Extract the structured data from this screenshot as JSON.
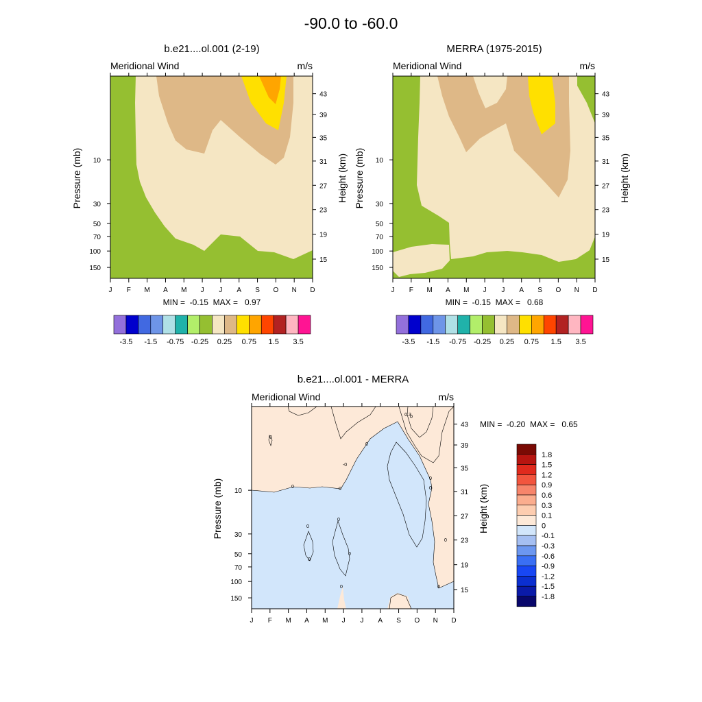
{
  "chart_data": {
    "type": "heatmap",
    "title": "-90.0 to -60.0",
    "colors": {
      "wind": [
        "#9370db",
        "#0000cd",
        "#4169e1",
        "#6e95e8",
        "#b0e0e6",
        "#20b2aa",
        "#b2ee6a",
        "#95bf31",
        "#f5e6c3",
        "#deb887",
        "#ffe000",
        "#ffa500",
        "#ff4500",
        "#b22222",
        "#ffb6c1",
        "#ff1493"
      ],
      "diff": [
        "#08076b",
        "#0a1aa8",
        "#0b2fd0",
        "#1847f4",
        "#3a6ff4",
        "#6c97f0",
        "#a5bff2",
        "#d2e6fb",
        "#fde9d8",
        "#fdcdb0",
        "#fbad8e",
        "#f7856b",
        "#f2553e",
        "#e02a1d",
        "#b71510",
        "#7a0a04"
      ],
      "contour_fill": {
        "zero_to_p1": "#fde9d8",
        "p1_to_p3": "#fdcdb0",
        "p3_to_p6": "#fbad8e",
        "m1_to_0": "#d2e6fb",
        "m3_to_m1": "#a5bff2"
      }
    },
    "panels": [
      {
        "title": "b.e21....ol.001 (2-19)",
        "left_label": "Meridional Wind",
        "right_label": "m/s",
        "xlabel_months": [
          "J",
          "F",
          "M",
          "A",
          "M",
          "J",
          "J",
          "A",
          "S",
          "O",
          "N",
          "D"
        ],
        "ylabel": "Pressure (mb)",
        "ylabel_right": "Height (km)",
        "pressure_ticks": [
          "10",
          "30",
          "50",
          "70",
          "100",
          "150"
        ],
        "height_ticks": [
          "43",
          "39",
          "35",
          "31",
          "27",
          "23",
          "19",
          "15"
        ],
        "stats": "MIN =  -0.15  MAX =   0.97",
        "min": -0.15,
        "max": 0.97,
        "colorbar_labels": [
          "-3.5",
          "-1.5",
          "-0.75",
          "-0.25",
          "0.25",
          "0.75",
          "1.5",
          "3.5"
        ]
      },
      {
        "title": "MERRA (1975-2015)",
        "left_label": "Meridional Wind",
        "right_label": "m/s",
        "xlabel_months": [
          "J",
          "F",
          "M",
          "A",
          "M",
          "J",
          "J",
          "A",
          "S",
          "O",
          "N",
          "D"
        ],
        "ylabel": "Pressure (mb)",
        "ylabel_right": "Height (km)",
        "pressure_ticks": [
          "10",
          "30",
          "50",
          "70",
          "100",
          "150"
        ],
        "height_ticks": [
          "43",
          "39",
          "35",
          "31",
          "27",
          "23",
          "19",
          "15"
        ],
        "stats": "MIN =  -0.15  MAX =   0.68",
        "min": -0.15,
        "max": 0.68,
        "colorbar_labels": [
          "-3.5",
          "-1.5",
          "-0.75",
          "-0.25",
          "0.25",
          "0.75",
          "1.5",
          "3.5"
        ]
      },
      {
        "title": "b.e21....ol.001 - MERRA",
        "left_label": "Meridional Wind",
        "right_label": "m/s",
        "xlabel_months": [
          "J",
          "F",
          "M",
          "A",
          "M",
          "J",
          "J",
          "A",
          "S",
          "O",
          "N",
          "D"
        ],
        "ylabel": "Pressure (mb)",
        "ylabel_right": "Height (km)",
        "pressure_ticks": [
          "10",
          "30",
          "50",
          "70",
          "100",
          "150"
        ],
        "height_ticks": [
          "43",
          "39",
          "35",
          "31",
          "27",
          "23",
          "19",
          "15"
        ],
        "stats": "MIN =  -0.20  MAX =   0.65",
        "min": -0.2,
        "max": 0.65,
        "colorbar_labels": [
          "1.8",
          "1.5",
          "1.2",
          "0.9",
          "0.6",
          "0.3",
          "0.1",
          "0",
          "-0.1",
          "-0.3",
          "-0.6",
          "-0.9",
          "-1.2",
          "-1.5",
          "-1.8"
        ],
        "contour_labels": [
          "0",
          "0",
          "0",
          "0",
          "0",
          "0",
          "0",
          "0",
          "0",
          "0",
          "0",
          "-0",
          "0",
          "0",
          "0",
          "0.3"
        ]
      }
    ]
  }
}
